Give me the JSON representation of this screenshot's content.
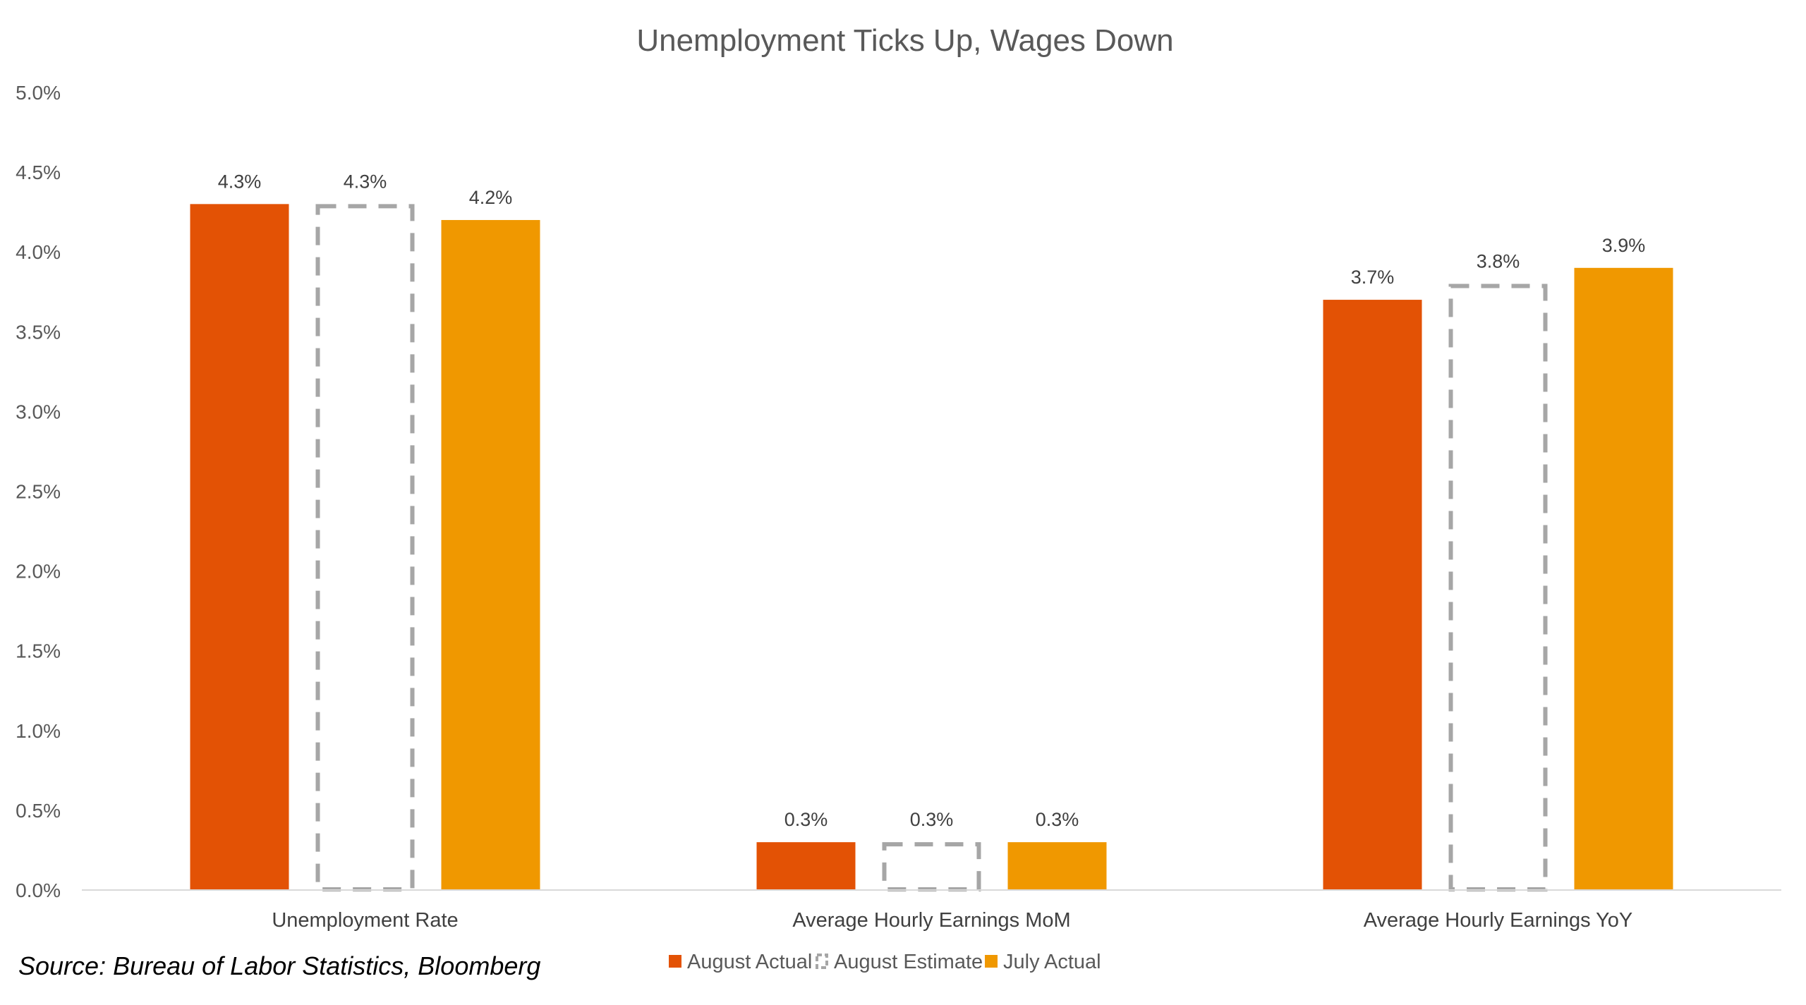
{
  "chart_data": {
    "type": "bar",
    "title": "Unemployment Ticks Up, Wages Down",
    "xlabel": "",
    "ylabel": "",
    "categories": [
      "Unemployment Rate",
      "Average Hourly Earnings MoM",
      "Average Hourly Earnings YoY"
    ],
    "series": [
      {
        "name": "August Actual",
        "values": [
          4.3,
          0.3,
          3.7
        ],
        "labels": [
          "4.3%",
          "0.3%",
          "3.7%"
        ],
        "color": "#E35205",
        "style": "solid"
      },
      {
        "name": "August Estimate",
        "values": [
          4.3,
          0.3,
          3.8
        ],
        "labels": [
          "4.3%",
          "0.3%",
          "3.8%"
        ],
        "color": "#A6A6A6",
        "style": "dashed-outline"
      },
      {
        "name": "July Actual",
        "values": [
          4.2,
          0.3,
          3.9
        ],
        "labels": [
          "4.2%",
          "0.3%",
          "3.9%"
        ],
        "color": "#F09800",
        "style": "solid"
      }
    ],
    "ylim": [
      0,
      5.0
    ],
    "yticks": [
      "0.0%",
      "0.5%",
      "1.0%",
      "1.5%",
      "2.0%",
      "2.5%",
      "3.0%",
      "3.5%",
      "4.0%",
      "4.5%",
      "5.0%"
    ],
    "grid": false,
    "legend_position": "bottom"
  },
  "source_note": "Source: Bureau of Labor Statistics, Bloomberg"
}
